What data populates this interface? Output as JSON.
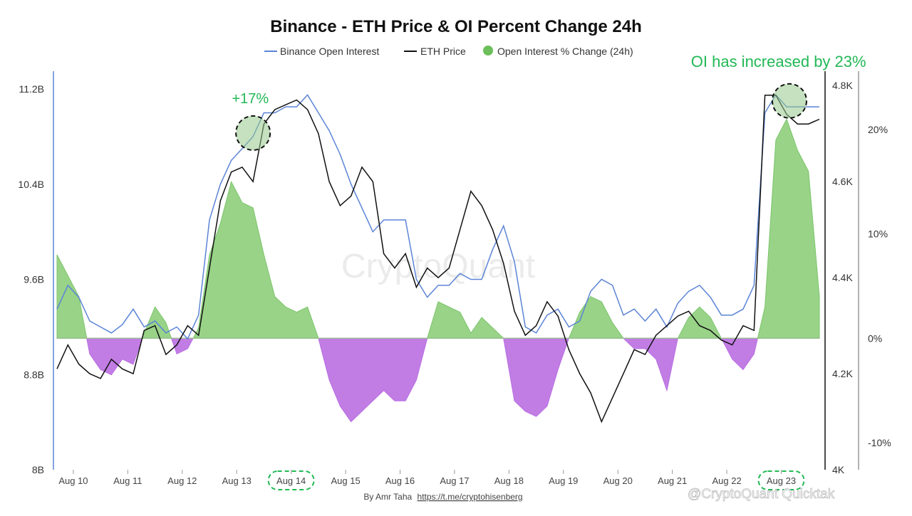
{
  "chart_data": {
    "type": "line",
    "title": "Binance - ETH Price & OI Percent Change 24h",
    "legend": {
      "placement": "top-center",
      "items": [
        {
          "label": "Binance Open Interest",
          "kind": "line",
          "color": "#5b84d6"
        },
        {
          "label": "ETH Price",
          "kind": "line",
          "color": "#111111"
        },
        {
          "label": "Open Interest % Change (24h)",
          "kind": "dot",
          "color": "#6cbf5a"
        }
      ]
    },
    "x_ticks": [
      "Aug 10",
      "Aug 11",
      "Aug 12",
      "Aug 13",
      "Aug 14",
      "Aug 15",
      "Aug 16",
      "Aug 17",
      "Aug 18",
      "Aug 19",
      "Aug 20",
      "Aug 21",
      "Aug 22",
      "Aug 23"
    ],
    "highlighted_ticks": [
      "Aug 14",
      "Aug 23"
    ],
    "x_range": [
      9.7,
      23.7
    ],
    "axes": {
      "open_interest": {
        "ticks": [
          "8B",
          "8.8B",
          "9.6B",
          "10.4B",
          "11.2B"
        ],
        "tick_values": [
          8.0,
          8.8,
          9.6,
          10.4,
          11.2
        ],
        "range": [
          8.0,
          11.35
        ]
      },
      "eth_price": {
        "ticks": [
          "4K",
          "4.2K",
          "4.4K",
          "4.6K",
          "4.8K"
        ],
        "tick_values": [
          4000,
          4200,
          4400,
          4600,
          4800
        ],
        "range": [
          4000,
          4830
        ]
      },
      "oi_change": {
        "ticks": [
          "-10%",
          "0%",
          "10%",
          "20%"
        ],
        "tick_values": [
          -10,
          0,
          10,
          20
        ],
        "range": [
          -12.6,
          25.6
        ]
      }
    },
    "grid": false,
    "series": [
      {
        "name": "Binance Open Interest",
        "axis": "open_interest",
        "color": "#5b84d6",
        "x": [
          9.7,
          9.9,
          10.1,
          10.3,
          10.5,
          10.7,
          10.9,
          11.1,
          11.3,
          11.5,
          11.7,
          11.9,
          12.1,
          12.3,
          12.5,
          12.7,
          12.9,
          13.1,
          13.3,
          13.5,
          13.7,
          13.9,
          14.1,
          14.3,
          14.5,
          14.7,
          14.9,
          15.1,
          15.3,
          15.5,
          15.7,
          15.9,
          16.1,
          16.3,
          16.5,
          16.7,
          16.9,
          17.1,
          17.3,
          17.5,
          17.7,
          17.9,
          18.1,
          18.3,
          18.5,
          18.7,
          18.9,
          19.1,
          19.3,
          19.5,
          19.7,
          19.9,
          20.1,
          20.3,
          20.5,
          20.7,
          20.9,
          21.1,
          21.3,
          21.5,
          21.7,
          21.9,
          22.1,
          22.3,
          22.5,
          22.7,
          22.9,
          23.1,
          23.3,
          23.5,
          23.7
        ],
        "values": [
          9.35,
          9.55,
          9.45,
          9.25,
          9.2,
          9.15,
          9.22,
          9.35,
          9.2,
          9.25,
          9.15,
          9.2,
          9.1,
          9.3,
          10.1,
          10.4,
          10.6,
          10.7,
          10.8,
          11.0,
          11.0,
          11.05,
          11.05,
          11.15,
          11.0,
          10.85,
          10.65,
          10.4,
          10.2,
          10.0,
          10.1,
          10.1,
          10.1,
          9.6,
          9.45,
          9.55,
          9.55,
          9.65,
          9.6,
          9.6,
          9.85,
          10.05,
          9.75,
          9.2,
          9.15,
          9.3,
          9.35,
          9.2,
          9.25,
          9.5,
          9.6,
          9.55,
          9.3,
          9.35,
          9.25,
          9.35,
          9.2,
          9.4,
          9.5,
          9.55,
          9.45,
          9.3,
          9.3,
          9.35,
          9.55,
          11.0,
          11.15,
          11.05,
          11.05,
          11.05,
          11.05
        ]
      },
      {
        "name": "ETH Price",
        "axis": "eth_price",
        "color": "#111111",
        "x": [
          9.7,
          9.9,
          10.1,
          10.3,
          10.5,
          10.7,
          10.9,
          11.1,
          11.3,
          11.5,
          11.7,
          11.9,
          12.1,
          12.3,
          12.5,
          12.7,
          12.9,
          13.1,
          13.3,
          13.5,
          13.7,
          13.9,
          14.1,
          14.3,
          14.5,
          14.7,
          14.9,
          15.1,
          15.3,
          15.5,
          15.7,
          15.9,
          16.1,
          16.3,
          16.5,
          16.7,
          16.9,
          17.1,
          17.3,
          17.5,
          17.7,
          17.9,
          18.1,
          18.3,
          18.5,
          18.7,
          18.9,
          19.1,
          19.3,
          19.5,
          19.7,
          19.9,
          20.1,
          20.3,
          20.5,
          20.7,
          20.9,
          21.1,
          21.3,
          21.5,
          21.7,
          21.9,
          22.1,
          22.3,
          22.5,
          22.7,
          22.9,
          23.1,
          23.3,
          23.5,
          23.7
        ],
        "values": [
          4210,
          4260,
          4220,
          4200,
          4190,
          4230,
          4210,
          4200,
          4290,
          4300,
          4240,
          4260,
          4300,
          4280,
          4420,
          4560,
          4620,
          4630,
          4600,
          4720,
          4750,
          4760,
          4770,
          4750,
          4700,
          4600,
          4550,
          4570,
          4630,
          4600,
          4450,
          4420,
          4450,
          4380,
          4420,
          4400,
          4420,
          4500,
          4580,
          4550,
          4500,
          4430,
          4330,
          4280,
          4300,
          4350,
          4320,
          4250,
          4200,
          4160,
          4100,
          4150,
          4200,
          4250,
          4240,
          4280,
          4300,
          4320,
          4330,
          4300,
          4290,
          4270,
          4260,
          4300,
          4290,
          4780,
          4780,
          4740,
          4720,
          4720,
          4730
        ]
      },
      {
        "name": "Open Interest % Change (24h)",
        "axis": "oi_change",
        "color": "#6cbf5a",
        "negative_color": "#b25ee0",
        "x": [
          9.7,
          9.9,
          10.1,
          10.3,
          10.5,
          10.7,
          10.9,
          11.1,
          11.3,
          11.5,
          11.7,
          11.9,
          12.1,
          12.3,
          12.5,
          12.7,
          12.9,
          13.1,
          13.3,
          13.5,
          13.7,
          13.9,
          14.1,
          14.3,
          14.5,
          14.7,
          14.9,
          15.1,
          15.3,
          15.5,
          15.7,
          15.9,
          16.1,
          16.3,
          16.5,
          16.7,
          16.9,
          17.1,
          17.3,
          17.5,
          17.7,
          17.9,
          18.1,
          18.3,
          18.5,
          18.7,
          18.9,
          19.1,
          19.3,
          19.5,
          19.7,
          19.9,
          20.1,
          20.3,
          20.5,
          20.7,
          20.9,
          21.1,
          21.3,
          21.5,
          21.7,
          21.9,
          22.1,
          22.3,
          22.5,
          22.7,
          22.9,
          23.1,
          23.3,
          23.5,
          23.7
        ],
        "values": [
          8,
          6,
          4,
          -1.5,
          -3,
          -3.5,
          -2,
          -2.5,
          0.5,
          3,
          1.5,
          -1.5,
          -1,
          1,
          8,
          11,
          15,
          13,
          12.5,
          8,
          4,
          3,
          2.5,
          3,
          0,
          -4,
          -6.5,
          -8,
          -7,
          -6,
          -5,
          -6,
          -6,
          -4,
          0,
          3.5,
          3,
          2.5,
          0.5,
          2,
          1,
          0,
          -6,
          -7,
          -7.5,
          -6.5,
          -3,
          0,
          2.5,
          4,
          3.5,
          1.5,
          0,
          -1,
          -1,
          -2,
          -5,
          0,
          2,
          3,
          2,
          0,
          -2,
          -3,
          -1.5,
          3,
          19,
          21,
          18,
          16,
          4
        ]
      }
    ],
    "annotations": [
      {
        "text": "+17%",
        "color": "#22b855",
        "near": "Aug 13"
      },
      {
        "text": "OI has increased by 23%",
        "color": "#22b855",
        "near": "Aug 23"
      }
    ],
    "watermark": "CryptoQuant",
    "credit": {
      "prefix": "By Amr Taha",
      "link": "https://t.me/cryptohisenberg"
    },
    "corner_mark": "@CryptoQuant Quicktak"
  }
}
